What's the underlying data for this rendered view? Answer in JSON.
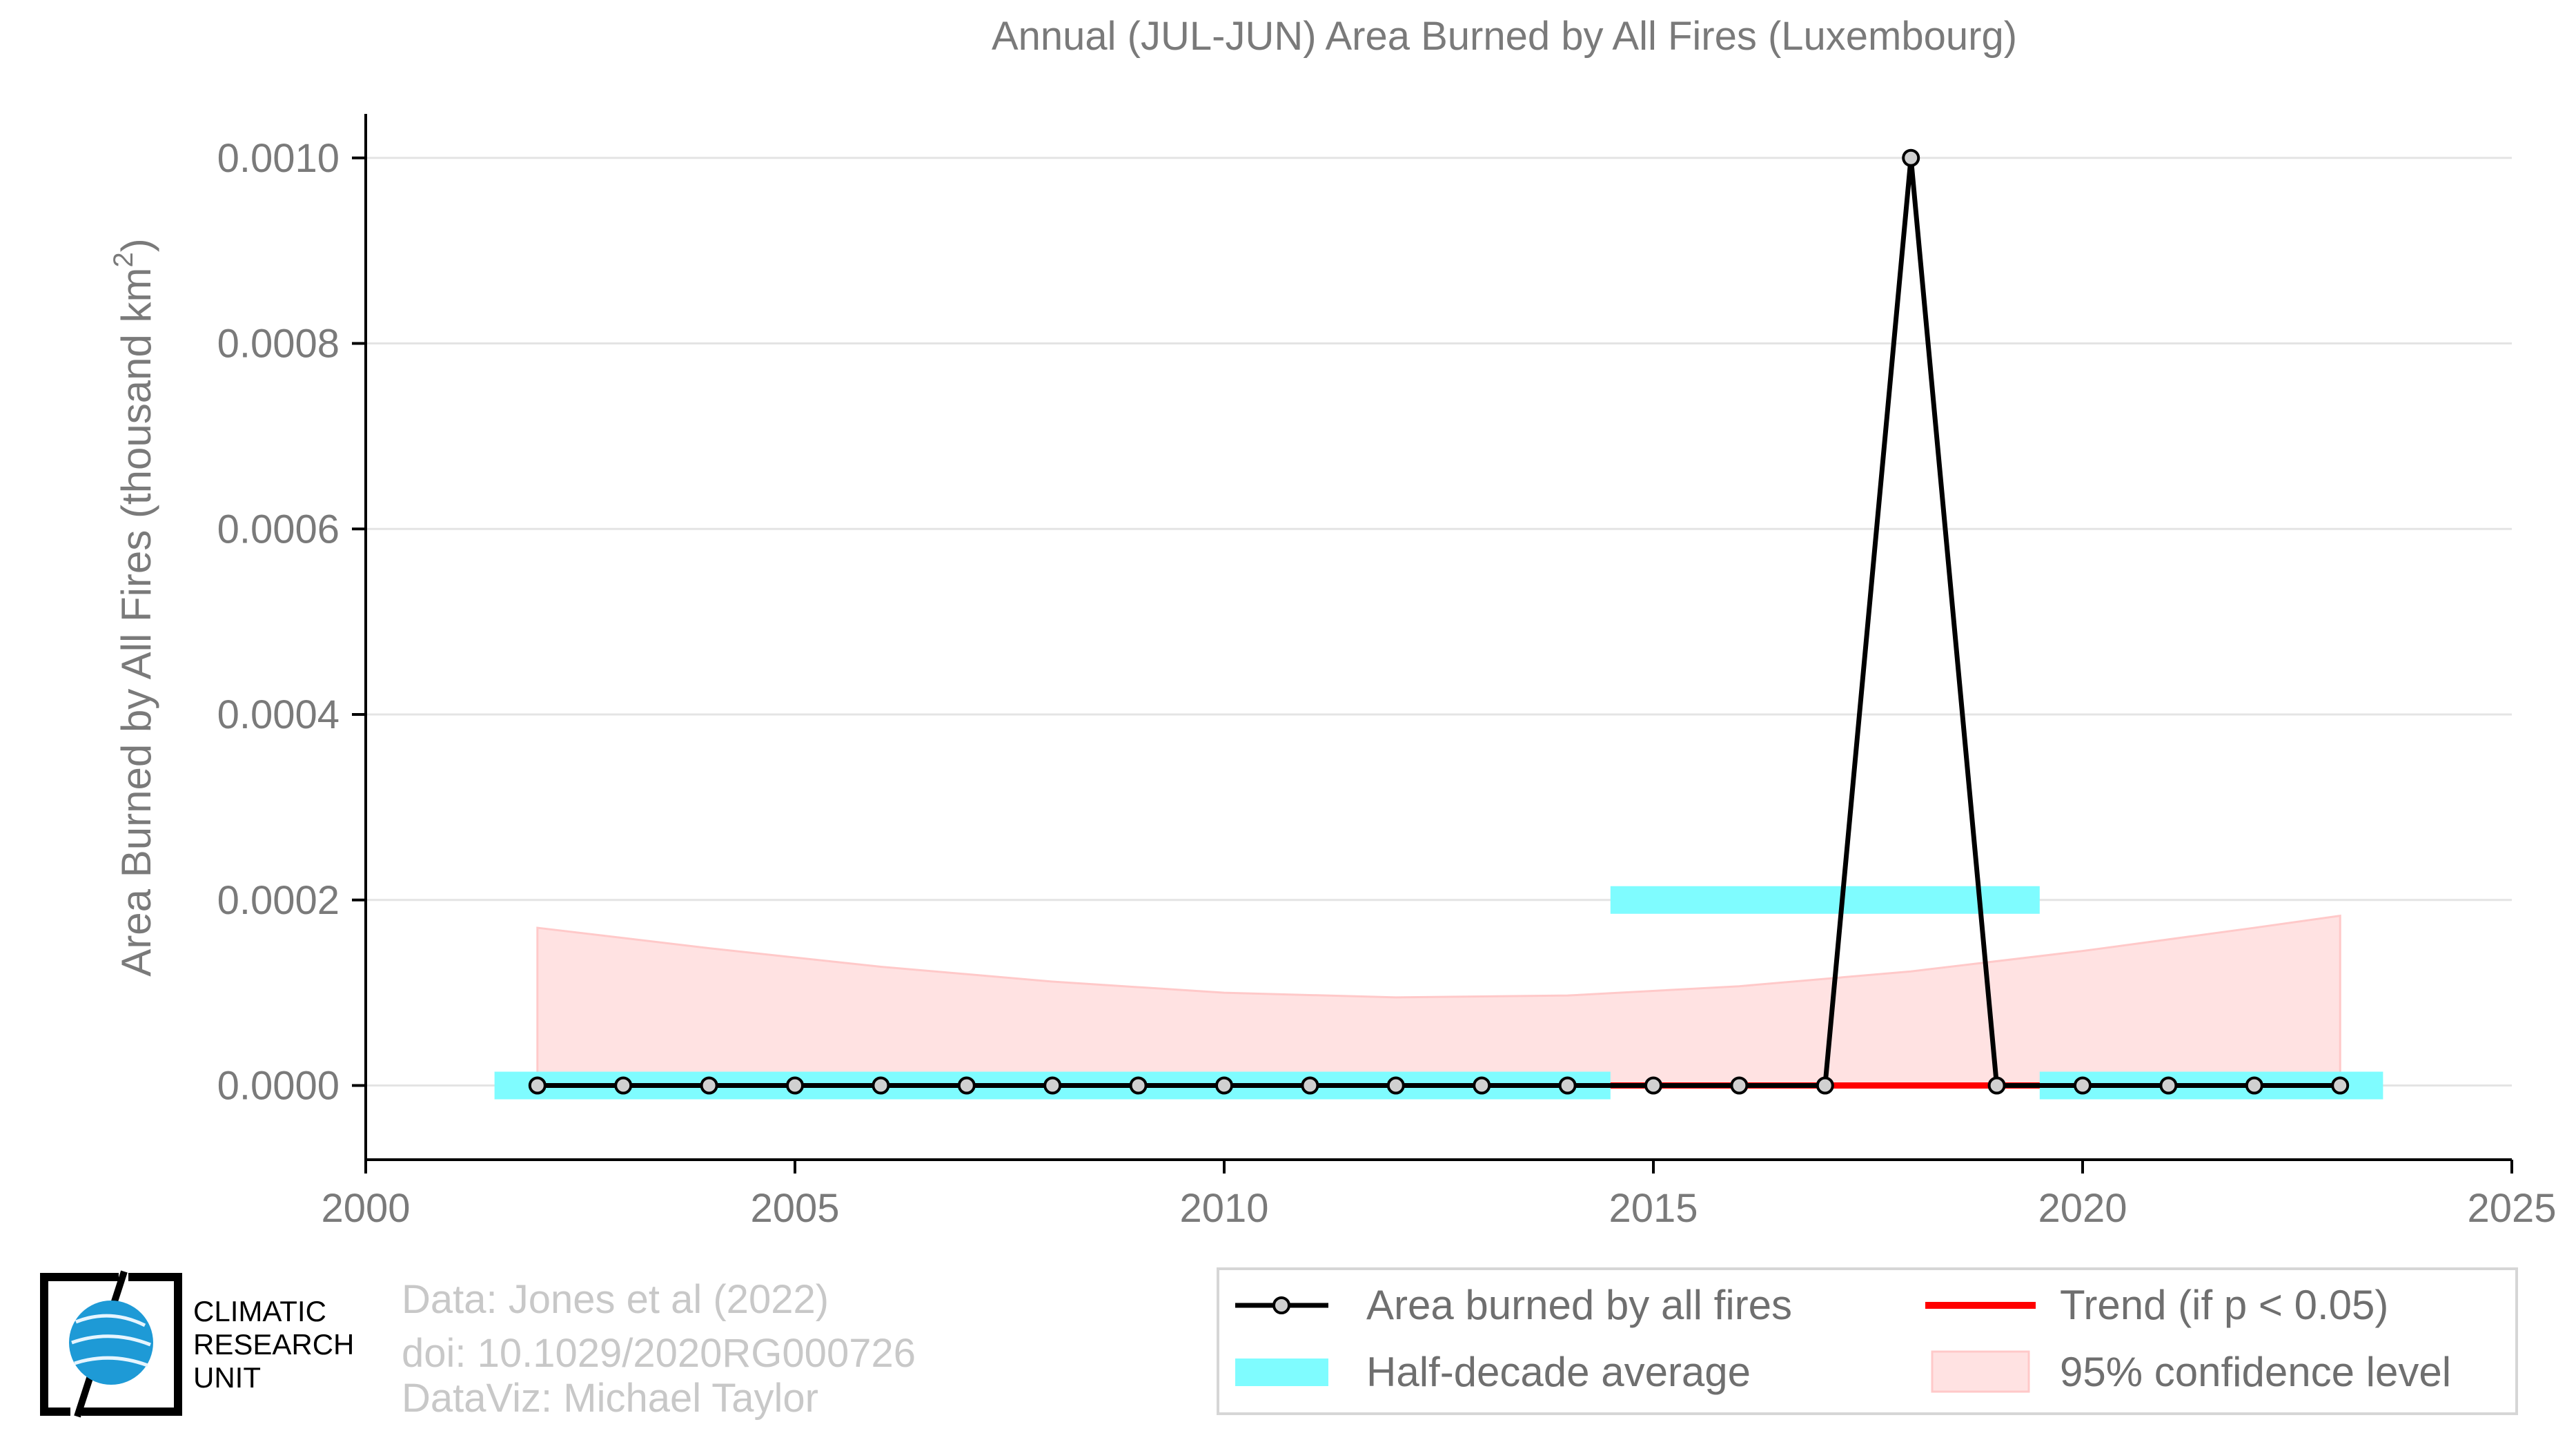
{
  "chart_data": {
    "type": "line",
    "title": "Annual (JUL-JUN) Area Burned by All Fires (Luxembourg)",
    "ylabel_main": "Area Burned by All Fires (thousand km",
    "ylabel_sup": "2",
    "ylabel_close": ")",
    "xlim": [
      2000,
      2025
    ],
    "ylim": [
      -8e-05,
      0.00104
    ],
    "x_ticks": [
      2000,
      2005,
      2010,
      2015,
      2020,
      2025
    ],
    "x_tick_labels": [
      "2000",
      "2005",
      "2010",
      "2015",
      "2020",
      "2025"
    ],
    "y_ticks": [
      0,
      0.0002,
      0.0004,
      0.0006,
      0.0008,
      0.001
    ],
    "y_tick_labels": [
      "0.0000",
      "0.0002",
      "0.0004",
      "0.0006",
      "0.0008",
      "0.0010"
    ],
    "grid": "horizontal",
    "series": [
      {
        "name": "Area burned by all fires",
        "color": "#000000",
        "marker_fill": "#d0d0d0",
        "x": [
          2002,
          2003,
          2004,
          2005,
          2006,
          2007,
          2008,
          2009,
          2010,
          2011,
          2012,
          2013,
          2014,
          2015,
          2016,
          2017,
          2018,
          2019,
          2020,
          2021,
          2022,
          2023
        ],
        "y": [
          0,
          0,
          0,
          0,
          0,
          0,
          0,
          0,
          0,
          0,
          0,
          0,
          0,
          0,
          0,
          0,
          0.001,
          0,
          0,
          0,
          0,
          0
        ]
      }
    ],
    "half_decade_average": {
      "name": "Half-decade average",
      "color": "#7ffcff",
      "segments": [
        {
          "x_start": 2001.5,
          "x_end": 2014.5,
          "value": 0
        },
        {
          "x_start": 2014.5,
          "x_end": 2019.5,
          "value": 0.0002
        },
        {
          "x_start": 2019.5,
          "x_end": 2023.5,
          "value": 0
        }
      ]
    },
    "trend": {
      "name": "Trend (if p < 0.05)",
      "color": "#ff0000",
      "x": [
        2014.5,
        2019.5
      ],
      "y": [
        0,
        0
      ]
    },
    "confidence_band": {
      "name": "95% confidence level",
      "fill": "#ffe2e2",
      "stroke": "#ffc9c9",
      "x": [
        2002,
        2004,
        2006,
        2008,
        2010,
        2012,
        2014,
        2016,
        2018,
        2020,
        2022,
        2023
      ],
      "upper": [
        0.00017,
        0.000148,
        0.000128,
        0.000112,
        0.0001,
        9.5e-05,
        9.7e-05,
        0.000107,
        0.000123,
        0.000145,
        0.00017,
        0.000183
      ],
      "lower": [
        0,
        0,
        0,
        0,
        0,
        0,
        0,
        0,
        0,
        0,
        0,
        0
      ]
    },
    "legend": {
      "position": "bottom-right",
      "entries": [
        {
          "label": "Area burned by all fires",
          "kind": "line-marker",
          "color": "#000000"
        },
        {
          "label": "Trend (if p < 0.05)",
          "kind": "line",
          "color": "#ff0000"
        },
        {
          "label": "Half-decade average",
          "kind": "band",
          "color": "#7ffcff"
        },
        {
          "label": "95% confidence level",
          "kind": "patch",
          "color": "#ffe2e2"
        }
      ]
    }
  },
  "credits": {
    "line1": "Data: Jones et al (2022)",
    "line2": "doi: 10.1029/2020RG000726",
    "line3": "DataViz: Michael Taylor"
  },
  "logo": {
    "line1": "CLIMATIC",
    "line2": "RESEARCH",
    "line3": "UNIT",
    "globe_color": "#1e9ad6"
  }
}
